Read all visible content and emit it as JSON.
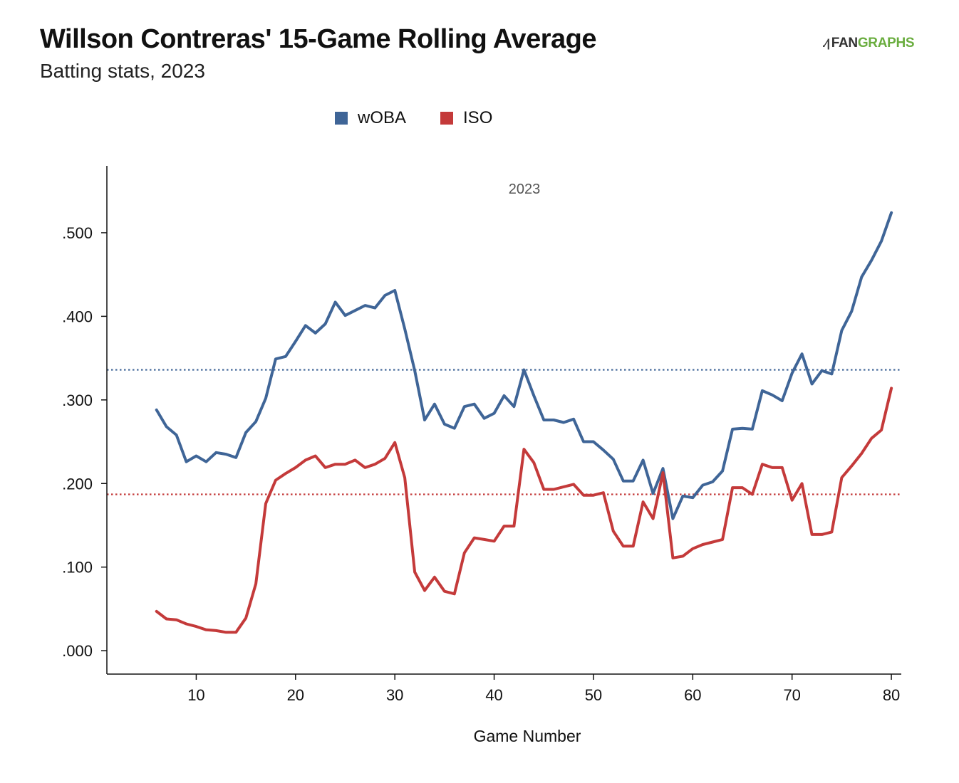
{
  "header": {
    "title": "Willson Contreras' 15-Game Rolling Average",
    "subtitle": "Batting stats, 2023",
    "logo_fan": "FAN",
    "logo_graphs": "GRAPHS"
  },
  "colors": {
    "woba": "#3f6597",
    "iso": "#c43a3a"
  },
  "chart_data": {
    "type": "line",
    "panel_label": "2023",
    "xlabel": "Game Number",
    "ylabel": "",
    "xlim": [
      1,
      81
    ],
    "ylim": [
      -0.028,
      0.58
    ],
    "x_ticks": [
      10,
      20,
      30,
      40,
      50,
      60,
      70,
      80
    ],
    "y_ticks": [
      0.0,
      0.1,
      0.2,
      0.3,
      0.4,
      0.5
    ],
    "y_tick_labels": [
      ".000",
      ".100",
      ".200",
      ".300",
      ".400",
      ".500"
    ],
    "legend_position": "top-center",
    "grid": false,
    "x": [
      6,
      7,
      8,
      9,
      10,
      11,
      12,
      13,
      14,
      15,
      16,
      17,
      18,
      19,
      20,
      21,
      22,
      23,
      24,
      25,
      26,
      27,
      28,
      29,
      30,
      31,
      32,
      33,
      34,
      35,
      36,
      37,
      38,
      39,
      40,
      41,
      42,
      43,
      44,
      45,
      46,
      47,
      48,
      49,
      50,
      51,
      52,
      53,
      54,
      55,
      56,
      57,
      58,
      59,
      60,
      61,
      62,
      63,
      64,
      65,
      66,
      67,
      68,
      69,
      70,
      71,
      72,
      73,
      74,
      75,
      76,
      77,
      78,
      79,
      80
    ],
    "series": [
      {
        "name": "wOBA",
        "color": "#3f6597",
        "average": 0.336,
        "values": [
          0.288,
          0.268,
          0.258,
          0.226,
          0.233,
          0.226,
          0.237,
          0.235,
          0.231,
          0.261,
          0.274,
          0.302,
          0.349,
          0.352,
          0.37,
          0.389,
          0.38,
          0.391,
          0.417,
          0.401,
          0.407,
          0.413,
          0.41,
          0.425,
          0.431,
          0.385,
          0.335,
          0.276,
          0.295,
          0.271,
          0.266,
          0.292,
          0.295,
          0.278,
          0.284,
          0.305,
          0.292,
          0.336,
          0.305,
          0.276,
          0.276,
          0.273,
          0.277,
          0.25,
          0.25,
          0.24,
          0.229,
          0.203,
          0.203,
          0.228,
          0.188,
          0.218,
          0.158,
          0.185,
          0.183,
          0.198,
          0.202,
          0.215,
          0.265,
          0.266,
          0.265,
          0.311,
          0.306,
          0.299,
          0.332,
          0.355,
          0.319,
          0.335,
          0.331,
          0.383,
          0.406,
          0.447,
          0.467,
          0.49,
          0.524
        ]
      },
      {
        "name": "ISO",
        "color": "#c43a3a",
        "average": 0.187,
        "values": [
          0.047,
          0.038,
          0.037,
          0.032,
          0.029,
          0.025,
          0.024,
          0.022,
          0.022,
          0.039,
          0.08,
          0.176,
          0.204,
          0.212,
          0.219,
          0.228,
          0.233,
          0.219,
          0.223,
          0.223,
          0.228,
          0.219,
          0.223,
          0.23,
          0.249,
          0.207,
          0.094,
          0.072,
          0.088,
          0.071,
          0.068,
          0.117,
          0.135,
          0.133,
          0.131,
          0.149,
          0.149,
          0.241,
          0.225,
          0.193,
          0.193,
          0.196,
          0.199,
          0.186,
          0.186,
          0.189,
          0.143,
          0.125,
          0.125,
          0.178,
          0.158,
          0.213,
          0.111,
          0.113,
          0.122,
          0.127,
          0.13,
          0.133,
          0.195,
          0.195,
          0.187,
          0.223,
          0.219,
          0.219,
          0.18,
          0.2,
          0.139,
          0.139,
          0.142,
          0.207,
          0.221,
          0.236,
          0.254,
          0.264,
          0.314
        ]
      }
    ]
  }
}
